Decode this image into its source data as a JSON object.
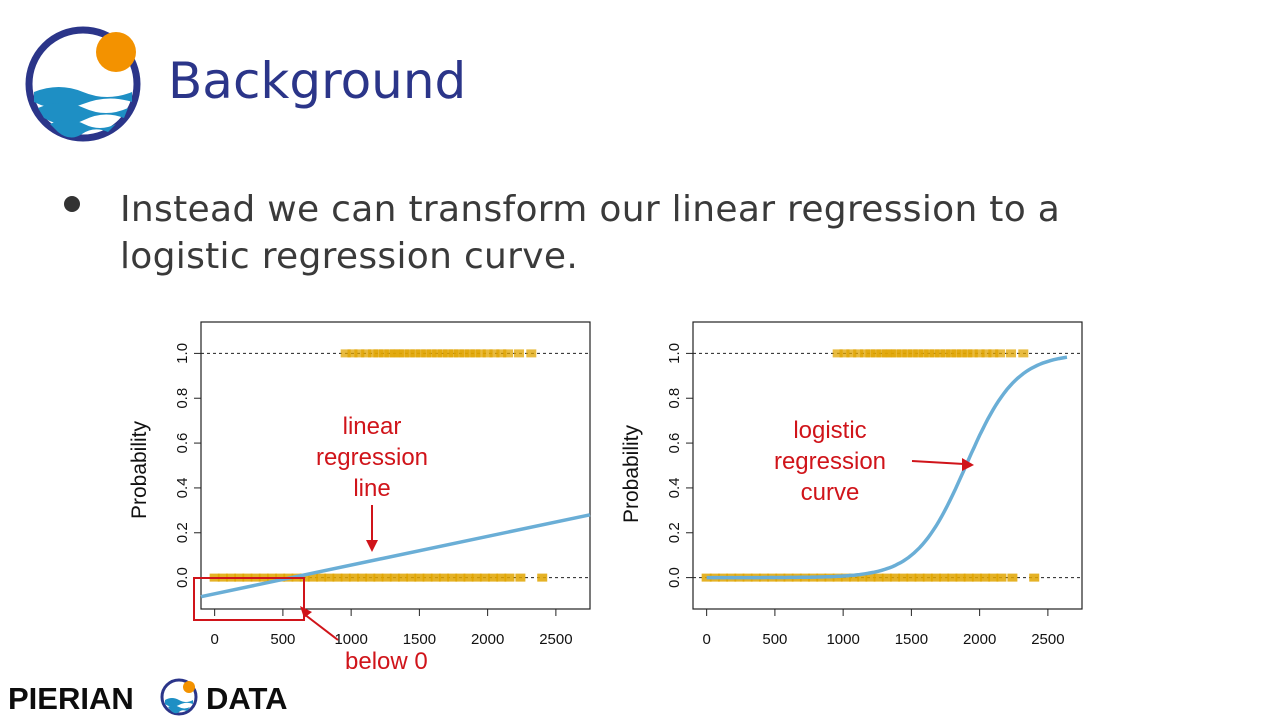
{
  "header": {
    "title": "Background",
    "logo_icon": "pierian-data-logo-icon"
  },
  "bullets": [
    {
      "text": "Instead we can transform our linear regression to a logistic regression curve."
    }
  ],
  "colors": {
    "title": "#2b3589",
    "curve": "#6aaed6",
    "points": "#e0a400",
    "annotation": "#d0141a"
  },
  "footer": {
    "brand_left": "PIERIAN",
    "brand_right": "DATA"
  },
  "chart_data": [
    {
      "type": "line",
      "ylabel": "Probability",
      "xlabel": "",
      "xlim": [
        -100,
        2750
      ],
      "ylim": [
        -0.14,
        1.14
      ],
      "x_ticks": [
        0,
        500,
        1000,
        1500,
        2000,
        2500
      ],
      "y_ticks": [
        0.0,
        0.2,
        0.4,
        0.6,
        0.8,
        1.0
      ],
      "reference_lines": [
        0,
        1
      ],
      "series": [
        {
          "kind": "linear",
          "x": [
            -100,
            2750
          ],
          "y": [
            -0.085,
            0.28
          ]
        }
      ],
      "rug_points": {
        "y1": [
          960,
          1010,
          1060,
          1110,
          1160,
          1200,
          1240,
          1280,
          1320,
          1350,
          1390,
          1430,
          1470,
          1510,
          1550,
          1590,
          1630,
          1670,
          1710,
          1750,
          1790,
          1830,
          1870,
          1910,
          1950,
          2000,
          2050,
          2100,
          2150,
          2230,
          2320
        ],
        "y0": [
          0,
          60,
          120,
          180,
          240,
          300,
          360,
          420,
          480,
          540,
          600,
          660,
          720,
          780,
          840,
          900,
          960,
          1020,
          1080,
          1140,
          1200,
          1260,
          1320,
          1380,
          1440,
          1500,
          1560,
          1620,
          1680,
          1740,
          1800,
          1860,
          1920,
          1980,
          2040,
          2100,
          2160,
          2240,
          2400
        ]
      },
      "annotations": [
        {
          "text": "linear regression line",
          "lines": [
            "linear",
            "regression",
            "line"
          ]
        },
        {
          "text": "below 0"
        }
      ]
    },
    {
      "type": "line",
      "ylabel": "Probability",
      "xlabel": "",
      "xlim": [
        -100,
        2750
      ],
      "ylim": [
        -0.14,
        1.14
      ],
      "x_ticks": [
        0,
        500,
        1000,
        1500,
        2000,
        2500
      ],
      "y_ticks": [
        0.0,
        0.2,
        0.4,
        0.6,
        0.8,
        1.0
      ],
      "reference_lines": [
        0,
        1
      ],
      "series": [
        {
          "kind": "logistic",
          "x0": 1900,
          "k": 0.0055,
          "x_range": [
            0,
            2650
          ]
        }
      ],
      "rug_points": {
        "y1": [
          960,
          1010,
          1060,
          1110,
          1160,
          1200,
          1240,
          1280,
          1320,
          1350,
          1390,
          1430,
          1470,
          1510,
          1550,
          1590,
          1630,
          1670,
          1710,
          1750,
          1790,
          1830,
          1870,
          1910,
          1950,
          2000,
          2050,
          2100,
          2150,
          2230,
          2320
        ],
        "y0": [
          0,
          60,
          120,
          180,
          240,
          300,
          360,
          420,
          480,
          540,
          600,
          660,
          720,
          780,
          840,
          900,
          960,
          1020,
          1080,
          1140,
          1200,
          1260,
          1320,
          1380,
          1440,
          1500,
          1560,
          1620,
          1680,
          1740,
          1800,
          1860,
          1920,
          1980,
          2040,
          2100,
          2160,
          2240,
          2400
        ]
      },
      "annotations": [
        {
          "text": "logistic regression curve",
          "lines": [
            "logistic",
            "regression",
            "curve"
          ]
        }
      ]
    }
  ]
}
